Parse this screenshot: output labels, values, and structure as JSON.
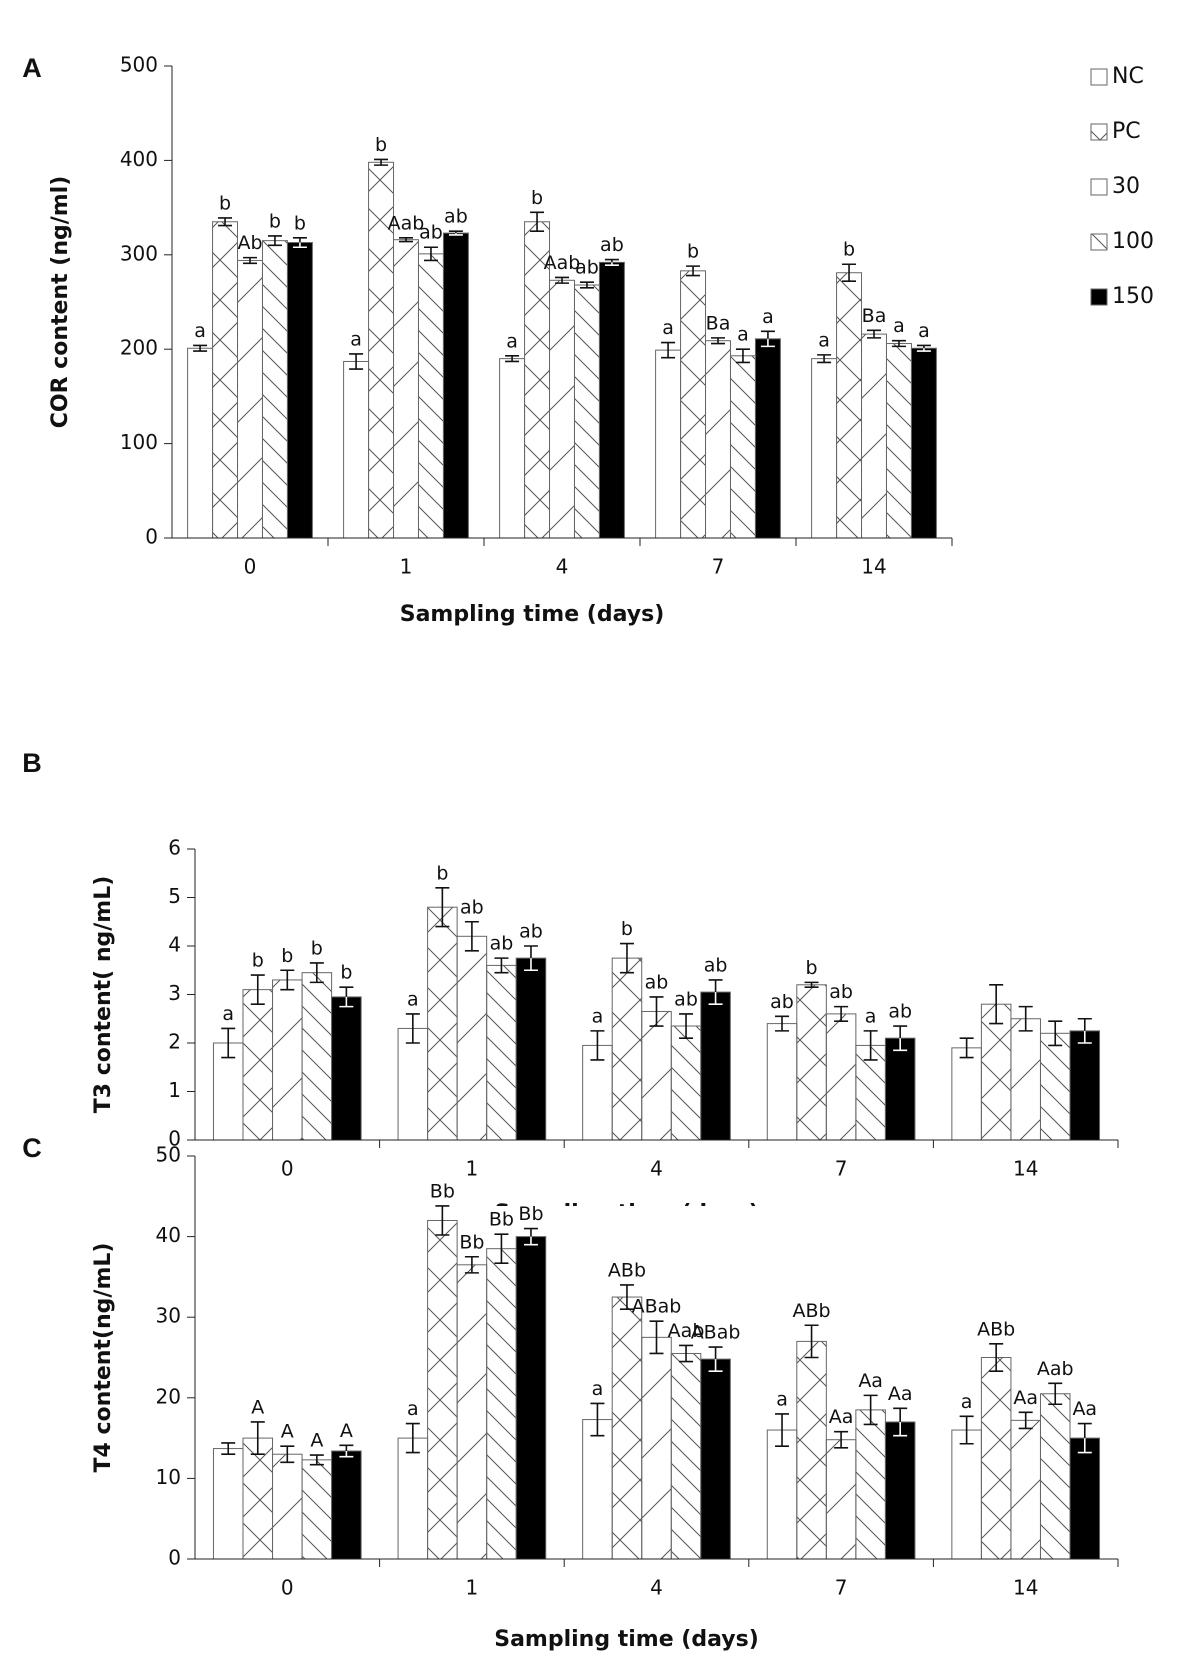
{
  "chart_data": [
    {
      "type": "bar",
      "panel": "A",
      "ylabel": "COR content (ng/ml)",
      "xlabel": "Sampling time (days)",
      "categories": [
        "0",
        "1",
        "4",
        "7",
        "14"
      ],
      "ylim": [
        0,
        500
      ],
      "yticks": [
        0,
        100,
        200,
        300,
        400,
        500
      ],
      "legend": "upper right",
      "series": [
        {
          "name": "NC",
          "color": "#ffffff",
          "pattern": "none",
          "values": [
            201,
            187,
            190,
            199,
            190
          ],
          "errors": [
            3,
            8,
            3,
            8,
            4
          ],
          "labels": [
            "a",
            "a",
            "a",
            "a",
            "a"
          ]
        },
        {
          "name": "PC",
          "color": "#ffffff",
          "pattern": "cross",
          "values": [
            335,
            398,
            335,
            283,
            281
          ],
          "errors": [
            4,
            3,
            10,
            5,
            9
          ],
          "labels": [
            "b",
            "b",
            "b",
            "b",
            "b"
          ]
        },
        {
          "name": "30",
          "color": "#ffffff",
          "pattern": "diag-up",
          "values": [
            294,
            316,
            273,
            209,
            216
          ],
          "errors": [
            3,
            2,
            3,
            3,
            4
          ],
          "labels": [
            "Ab",
            "Aab",
            "Aab",
            "Ba",
            "Ba"
          ]
        },
        {
          "name": "100",
          "color": "#ffffff",
          "pattern": "diag-down",
          "values": [
            315,
            301,
            268,
            193,
            206
          ],
          "errors": [
            5,
            7,
            3,
            7,
            3
          ],
          "labels": [
            "b",
            "ab",
            "ab",
            "a",
            "a"
          ]
        },
        {
          "name": "150",
          "color": "#000000",
          "pattern": "solid",
          "values": [
            313,
            323,
            292,
            211,
            201
          ],
          "errors": [
            5,
            2,
            3,
            8,
            3
          ],
          "labels": [
            "b",
            "ab",
            "ab",
            "a",
            "a"
          ]
        }
      ]
    },
    {
      "type": "bar",
      "panel": "B",
      "ylabel": "T3 content( ng/mL)",
      "xlabel": "Sampling time (days)",
      "categories": [
        "0",
        "1",
        "4",
        "7",
        "14"
      ],
      "ylim": [
        0,
        6
      ],
      "yticks": [
        0,
        1,
        2,
        3,
        4,
        5,
        6
      ],
      "series": [
        {
          "name": "NC",
          "color": "#ffffff",
          "pattern": "none",
          "values": [
            2.0,
            2.3,
            1.95,
            2.4,
            1.9
          ],
          "errors": [
            0.3,
            0.3,
            0.3,
            0.15,
            0.2
          ],
          "labels": [
            "a",
            "a",
            "a",
            "ab",
            null
          ]
        },
        {
          "name": "PC",
          "color": "#ffffff",
          "pattern": "cross",
          "values": [
            3.1,
            4.8,
            3.75,
            3.2,
            2.8
          ],
          "errors": [
            0.3,
            0.4,
            0.3,
            0.05,
            0.4
          ],
          "labels": [
            "b",
            "b",
            "b",
            "b",
            null
          ]
        },
        {
          "name": "30",
          "color": "#ffffff",
          "pattern": "diag-up",
          "values": [
            3.3,
            4.2,
            2.65,
            2.6,
            2.5
          ],
          "errors": [
            0.2,
            0.3,
            0.3,
            0.15,
            0.25
          ],
          "labels": [
            "b",
            "ab",
            "ab",
            "ab",
            null
          ]
        },
        {
          "name": "100",
          "color": "#ffffff",
          "pattern": "diag-down",
          "values": [
            3.45,
            3.6,
            2.35,
            1.95,
            2.2
          ],
          "errors": [
            0.2,
            0.15,
            0.25,
            0.3,
            0.25
          ],
          "labels": [
            "b",
            "ab",
            "ab",
            "a",
            null
          ]
        },
        {
          "name": "150",
          "color": "#000000",
          "pattern": "solid",
          "values": [
            2.95,
            3.75,
            3.05,
            2.1,
            2.25
          ],
          "errors": [
            0.2,
            0.25,
            0.25,
            0.25,
            0.25
          ],
          "labels": [
            "b",
            "ab",
            "ab",
            "ab",
            null
          ]
        }
      ]
    },
    {
      "type": "bar",
      "panel": "C",
      "ylabel": "T4  content(ng/mL)",
      "xlabel": "Sampling time (days)",
      "categories": [
        "0",
        "1",
        "4",
        "7",
        "14"
      ],
      "ylim": [
        0,
        50
      ],
      "yticks": [
        0,
        10,
        20,
        30,
        40,
        50
      ],
      "series": [
        {
          "name": "NC",
          "color": "#ffffff",
          "pattern": "none",
          "values": [
            13.7,
            15,
            17.3,
            16,
            16
          ],
          "errors": [
            0.7,
            1.8,
            2,
            2,
            1.7
          ],
          "labels": [
            null,
            "a",
            "a",
            "a",
            "a"
          ]
        },
        {
          "name": "PC",
          "color": "#ffffff",
          "pattern": "cross",
          "values": [
            15,
            42,
            32.5,
            27,
            25
          ],
          "errors": [
            2,
            1.8,
            1.5,
            2,
            1.7
          ],
          "labels": [
            "A",
            "Bb",
            "ABb",
            "ABb",
            "ABb"
          ]
        },
        {
          "name": "30",
          "color": "#ffffff",
          "pattern": "diag-up",
          "values": [
            13,
            36.5,
            27.5,
            14.8,
            17.2
          ],
          "errors": [
            1,
            1,
            2,
            1,
            1
          ],
          "labels": [
            "A",
            "Bb",
            "ABab",
            "Aa",
            "Aa"
          ]
        },
        {
          "name": "100",
          "color": "#ffffff",
          "pattern": "diag-down",
          "values": [
            12.3,
            38.5,
            25.5,
            18.5,
            20.5
          ],
          "errors": [
            0.6,
            1.8,
            1,
            1.8,
            1.3
          ],
          "labels": [
            "A",
            "Bb",
            "Aab",
            "Aa",
            "Aab"
          ]
        },
        {
          "name": "150",
          "color": "#000000",
          "pattern": "solid",
          "values": [
            13.4,
            40,
            24.8,
            17,
            15
          ],
          "errors": [
            0.7,
            1,
            1.5,
            1.7,
            1.8
          ],
          "labels": [
            "A",
            "Bb",
            "ABab",
            "Aa",
            "Aa"
          ]
        }
      ]
    }
  ]
}
